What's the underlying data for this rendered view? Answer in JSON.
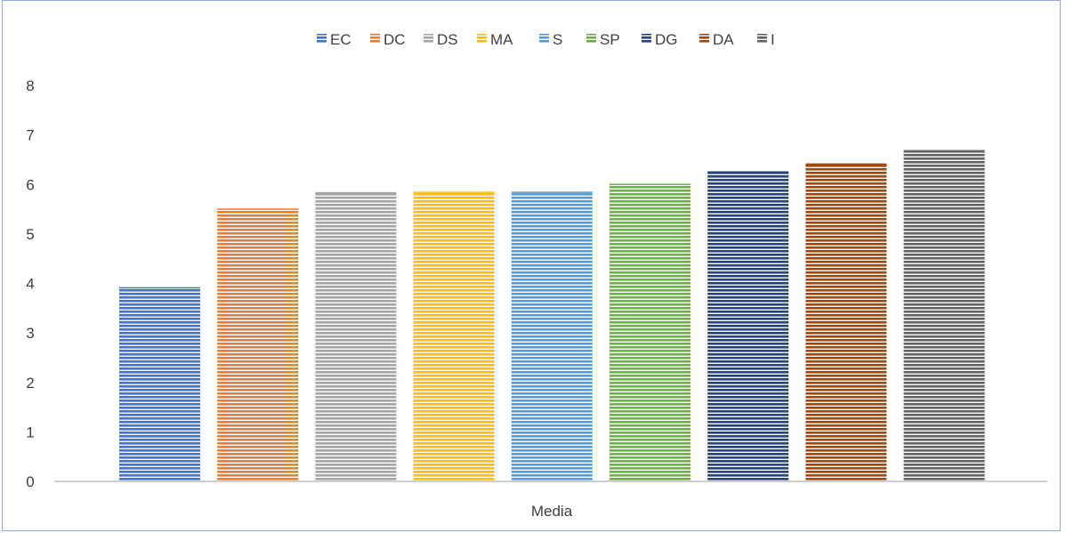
{
  "chart_data": {
    "type": "bar",
    "title": "",
    "xlabel": "",
    "ylabel": "",
    "categories": [
      "Media"
    ],
    "ylim": [
      0,
      8
    ],
    "yticks": [
      0,
      1,
      2,
      3,
      4,
      5,
      6,
      7,
      8
    ],
    "grid": false,
    "legend_position": "top",
    "bar_pattern": "horizontal-stripes",
    "series": [
      {
        "name": "EC",
        "values": [
          3.92
        ],
        "color": "#4472c4"
      },
      {
        "name": "DC",
        "values": [
          5.51
        ],
        "color": "#ed7d31"
      },
      {
        "name": "DS",
        "values": [
          5.84
        ],
        "color": "#a5a5a5"
      },
      {
        "name": "MA",
        "values": [
          5.85
        ],
        "color": "#ffc000"
      },
      {
        "name": "S",
        "values": [
          5.85
        ],
        "color": "#5b9bd5"
      },
      {
        "name": "SP",
        "values": [
          6.01
        ],
        "color": "#70ad47"
      },
      {
        "name": "DG",
        "values": [
          6.26
        ],
        "color": "#264478"
      },
      {
        "name": "DA",
        "values": [
          6.42
        ],
        "color": "#9e480e"
      },
      {
        "name": "I",
        "values": [
          6.69
        ],
        "color": "#636363"
      }
    ]
  }
}
